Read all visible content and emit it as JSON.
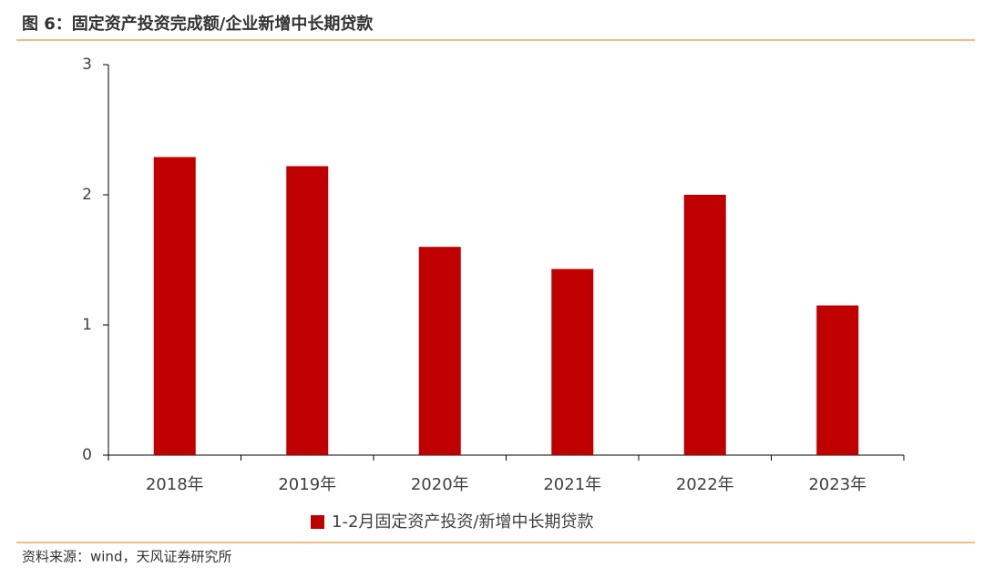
{
  "chart_data": {
    "type": "bar",
    "title": "图 6：固定资产投资完成额/企业新增中长期贷款",
    "source": "资料来源：wind，天风证券研究所",
    "categories": [
      "2018年",
      "2019年",
      "2020年",
      "2021年",
      "2022年",
      "2023年"
    ],
    "series": [
      {
        "name": "1-2月固定资产投资/新增中长期贷款",
        "color": "#c00000",
        "values": [
          2.29,
          2.22,
          1.6,
          1.43,
          2.0,
          1.15
        ]
      }
    ],
    "ylim": [
      0,
      3
    ],
    "yticks": [
      0,
      1,
      2,
      3
    ],
    "grid": false,
    "legend": "bottom"
  }
}
